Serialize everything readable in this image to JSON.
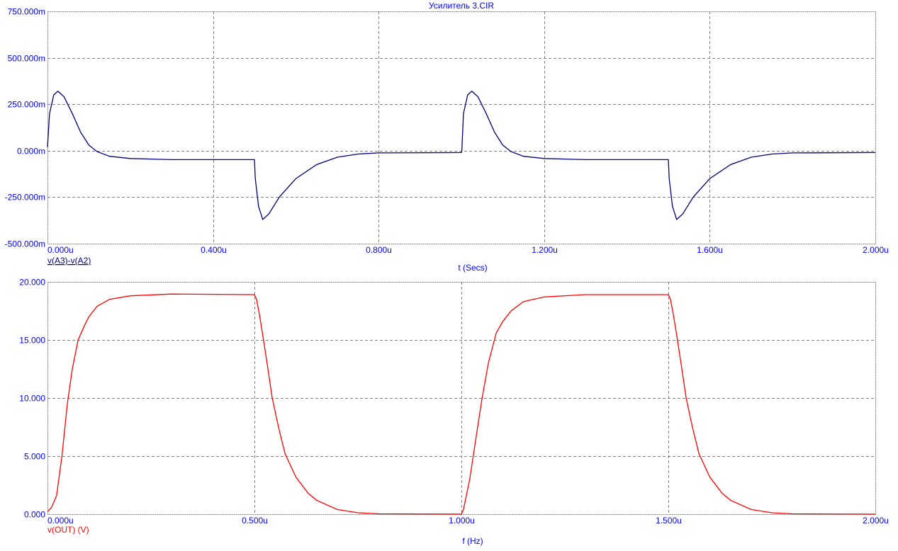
{
  "title": "Усилитель 3.CIR",
  "chart_data": [
    {
      "type": "line",
      "xlabel": "t (Secs)",
      "ylabel": "",
      "xlim": [
        0,
        2.0
      ],
      "ylim": [
        -500,
        750
      ],
      "x_unit": "u",
      "y_unit": "m",
      "grid": true,
      "xticks": [
        "0.000u",
        "0.400u",
        "0.800u",
        "1.200u",
        "1.600u",
        "2.000u"
      ],
      "xtick_values": [
        0,
        0.4,
        0.8,
        1.2,
        1.6,
        2.0
      ],
      "yticks": [
        "-500.000m",
        "-250.000m",
        "0.000m",
        "250.000m",
        "500.000m",
        "750.000m"
      ],
      "ytick_values": [
        -500,
        -250,
        0,
        250,
        500,
        750
      ],
      "series": [
        {
          "name": "v(A3)-v(A2)",
          "color": "#000080",
          "x": [
            0,
            0.005,
            0.015,
            0.025,
            0.04,
            0.06,
            0.08,
            0.1,
            0.12,
            0.15,
            0.2,
            0.3,
            0.5,
            0.502,
            0.51,
            0.52,
            0.535,
            0.56,
            0.6,
            0.65,
            0.7,
            0.75,
            0.8,
            1.0,
            1.001,
            1.005,
            1.015,
            1.025,
            1.04,
            1.06,
            1.08,
            1.1,
            1.12,
            1.15,
            1.2,
            1.3,
            1.5,
            1.502,
            1.51,
            1.52,
            1.535,
            1.56,
            1.6,
            1.65,
            1.7,
            1.75,
            1.8,
            2.0
          ],
          "values": [
            20,
            200,
            300,
            320,
            290,
            200,
            100,
            30,
            -5,
            -30,
            -42,
            -48,
            -48,
            -150,
            -300,
            -370,
            -340,
            -250,
            -150,
            -75,
            -35,
            -18,
            -12,
            -10,
            0,
            200,
            300,
            320,
            290,
            200,
            100,
            30,
            -5,
            -30,
            -42,
            -48,
            -48,
            -150,
            -300,
            -370,
            -340,
            -250,
            -150,
            -75,
            -35,
            -18,
            -12,
            -10
          ]
        }
      ]
    },
    {
      "type": "line",
      "xlabel": "f (Hz)",
      "ylabel": "",
      "xlim": [
        0,
        2.0
      ],
      "ylim": [
        0,
        20
      ],
      "x_unit": "u",
      "grid": true,
      "xticks": [
        "0.000u",
        "0.500u",
        "1.000u",
        "1.500u",
        "2.000u"
      ],
      "xtick_values": [
        0,
        0.5,
        1.0,
        1.5,
        2.0
      ],
      "yticks": [
        "0.000",
        "5.000",
        "10.000",
        "15.000",
        "20.000"
      ],
      "ytick_values": [
        0,
        5,
        10,
        15,
        20
      ],
      "series": [
        {
          "name": "v(OUT) (V)",
          "color": "#ff0000",
          "x": [
            0,
            0.01,
            0.022,
            0.035,
            0.048,
            0.06,
            0.074,
            0.09,
            0.1,
            0.12,
            0.15,
            0.2,
            0.3,
            0.5,
            0.505,
            0.512,
            0.522,
            0.533,
            0.543,
            0.558,
            0.574,
            0.6,
            0.63,
            0.65,
            0.7,
            0.75,
            0.8,
            1.0,
            1.005,
            1.02,
            1.035,
            1.05,
            1.065,
            1.084,
            1.1,
            1.12,
            1.15,
            1.2,
            1.3,
            1.5,
            1.505,
            1.512,
            1.522,
            1.533,
            1.543,
            1.558,
            1.574,
            1.6,
            1.63,
            1.65,
            1.7,
            1.75,
            1.8,
            2.0
          ],
          "values": [
            0.2,
            0.6,
            1.6,
            5,
            9.5,
            12.5,
            15,
            16.3,
            17,
            17.9,
            18.5,
            18.8,
            18.95,
            18.9,
            18.5,
            17.2,
            15,
            12.4,
            10,
            7.5,
            5.2,
            3.2,
            1.8,
            1.2,
            0.4,
            0.12,
            0.03,
            0.0,
            0.4,
            3,
            6.5,
            10,
            13,
            15.6,
            16.6,
            17.5,
            18.3,
            18.7,
            18.9,
            18.9,
            18.5,
            17.2,
            15,
            12.4,
            10,
            7.5,
            5.2,
            3.2,
            1.8,
            1.2,
            0.4,
            0.12,
            0.03,
            0.0
          ]
        }
      ]
    }
  ]
}
